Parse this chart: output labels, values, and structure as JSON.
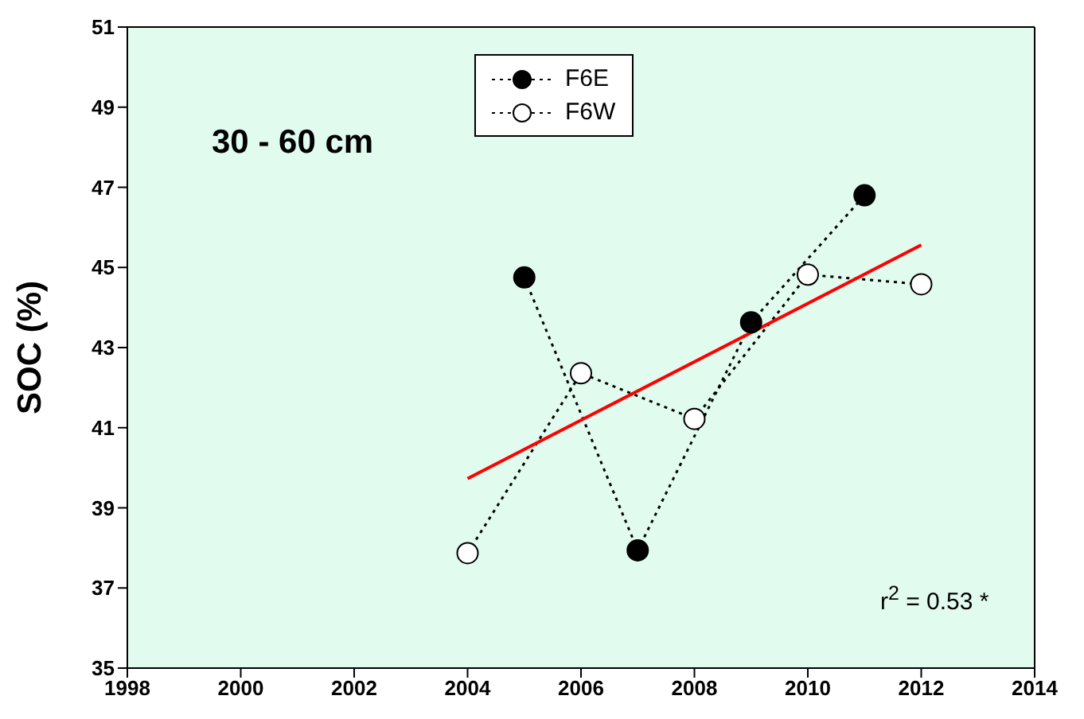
{
  "chart_data": {
    "type": "line",
    "ylabel": "SOC (%)",
    "xlim": [
      1998,
      2014
    ],
    "xticks": [
      1998,
      2000,
      2002,
      2004,
      2006,
      2008,
      2010,
      2012,
      2014
    ],
    "ylim": [
      35,
      51
    ],
    "yticks": [
      35,
      37,
      39,
      41,
      43,
      45,
      47,
      49,
      51
    ],
    "grid": false,
    "legend": "top",
    "marker": "circle",
    "line_style": "dotted",
    "annotations": [
      "30 - 60 cm",
      "r$^{2}$ = 0.53 *"
    ],
    "series": [
      {
        "name": "F6E",
        "color": "#000000",
        "x": [
          2005,
          2007,
          2009,
          2011
        ],
        "values": [
          44.75,
          37.94,
          43.63,
          46.8
        ]
      },
      {
        "name": "F6W",
        "color": "#ffffff",
        "x": [
          2004,
          2006,
          2008,
          2010,
          2012
        ],
        "values": [
          37.87,
          42.36,
          41.22,
          44.82,
          44.58
        ]
      },
      {
        "type": "line",
        "color": "#ff0000",
        "marker": "none",
        "line_style": "solid",
        "x": [
          2004,
          2012
        ],
        "values": [
          39.73,
          45.56
        ]
      }
    ]
  }
}
